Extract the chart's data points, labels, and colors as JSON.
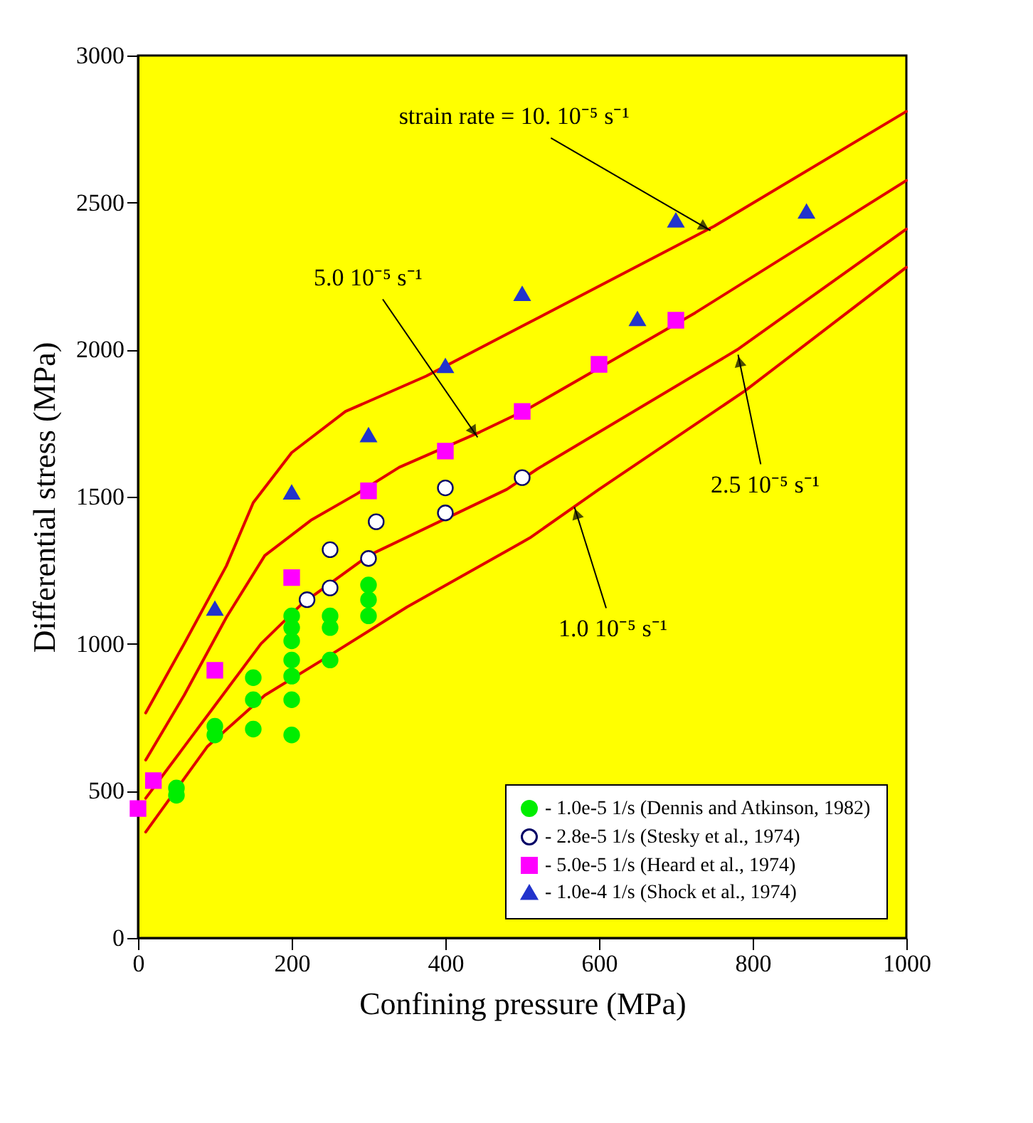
{
  "chart_data": {
    "type": "scatter",
    "xlabel": "Confining pressure (MPa)",
    "ylabel": "Differential stress (MPa)",
    "xlim": [
      0,
      1000
    ],
    "xticks": [
      0,
      200,
      400,
      600,
      800,
      1000
    ],
    "ylim": [
      0,
      3000
    ],
    "yticks": [
      0,
      500,
      1000,
      1500,
      2000,
      2500,
      3000
    ],
    "grid": false,
    "legend": "bottom right",
    "line_style": "solid",
    "series": [
      {
        "name": "- 1.0e-5 1/s (Dennis and Atkinson, 1982)",
        "color": "#00ee00",
        "marker": "circle",
        "x": [
          300,
          300,
          300,
          250,
          250,
          250,
          200,
          200,
          200,
          200,
          200,
          200,
          200,
          150,
          150,
          150,
          100,
          100,
          50,
          50
        ],
        "values": [
          1200,
          1150,
          1095,
          1095,
          1055,
          945,
          1095,
          1055,
          1010,
          945,
          890,
          810,
          690,
          885,
          810,
          710,
          720,
          690,
          510,
          485
        ]
      },
      {
        "name": "- 2.8e-5 1/s (Stesky et al., 1974)",
        "color": "#ffffff",
        "marker": "circle",
        "x": [
          500,
          400,
          400,
          310,
          300,
          250,
          250,
          220
        ],
        "values": [
          1565,
          1530,
          1445,
          1415,
          1290,
          1320,
          1190,
          1150
        ]
      },
      {
        "name": "- 5.0e-5 1/s (Heard et al., 1974)",
        "color": "#ff00ff",
        "marker": "square",
        "x": [
          700,
          600,
          500,
          400,
          300,
          200,
          100,
          20,
          0
        ],
        "values": [
          2100,
          1950,
          1790,
          1655,
          1520,
          1225,
          910,
          535,
          440
        ]
      },
      {
        "name": "- 1.0e-4 1/s (Shock et al., 1974)",
        "color": "#2233cc",
        "marker": "triangle",
        "x": [
          870,
          700,
          650,
          500,
          400,
          300,
          200,
          100
        ],
        "values": [
          2470,
          2440,
          2105,
          2190,
          1945,
          1710,
          1515,
          1120
        ]
      },
      {
        "type": "line",
        "color": "#e00000",
        "x": [
          10,
          60,
          115,
          150,
          200,
          270,
          375,
          500,
          750,
          1000
        ],
        "values": [
          765,
          1000,
          1265,
          1480,
          1650,
          1790,
          1910,
          2080,
          2420,
          2810
        ]
      },
      {
        "type": "line",
        "color": "#e00000",
        "x": [
          10,
          60,
          115,
          165,
          225,
          285,
          340,
          445,
          505,
          725,
          1000
        ],
        "values": [
          605,
          825,
          1090,
          1300,
          1420,
          1510,
          1600,
          1720,
          1795,
          2125,
          2575
        ]
      },
      {
        "type": "line",
        "color": "#e00000",
        "x": [
          10,
          100,
          160,
          213,
          300,
          480,
          520,
          780,
          1000
        ],
        "values": [
          475,
          790,
          1000,
          1135,
          1300,
          1525,
          1595,
          2000,
          2410
        ]
      },
      {
        "type": "line",
        "color": "#e00000",
        "x": [
          10,
          90,
          165,
          240,
          350,
          510,
          600,
          790,
          1000
        ],
        "values": [
          360,
          650,
          825,
          945,
          1125,
          1360,
          1525,
          1860,
          2280
        ]
      }
    ],
    "annotations": [
      {
        "text": "strain rate = 10. 10⁻⁵ s⁻¹",
        "x": 745,
        "y": 2405
      },
      {
        "text": "2.5 10⁻⁵ s⁻¹",
        "x": 781,
        "y": 1983
      },
      {
        "text": "1.0 10⁻⁵ s⁻¹",
        "x": 568,
        "y": 1465
      },
      {
        "text": "5.0 10⁻⁵ s⁻¹",
        "x": 442,
        "y": 1702
      }
    ]
  }
}
